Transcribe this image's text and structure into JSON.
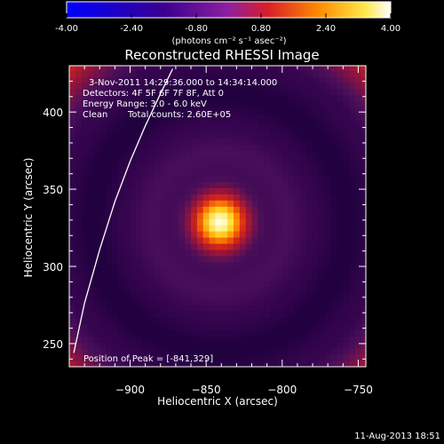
{
  "colorbar": {
    "tick_labels": [
      "-4.00",
      "-2.40",
      "-0.80",
      "0.80",
      "2.40",
      "4.00"
    ],
    "tick_values": [
      -4.0,
      -2.4,
      -0.8,
      0.8,
      2.4,
      4.0
    ],
    "range": [
      -4.0,
      4.0
    ],
    "units": "(photons cm⁻² s⁻¹ asec⁻²)",
    "colormap": "fire (blue-purple-red-orange-yellow-white)"
  },
  "chart_data": {
    "type": "heatmap",
    "title": "Reconstructed RHESSI Image",
    "xlabel": "Heliocentric X (arcsec)",
    "ylabel": "Heliocentric Y (arcsec)",
    "xlim": [
      -940,
      -745
    ],
    "ylim": [
      235,
      430
    ],
    "x_ticks": [
      -900,
      -850,
      -800,
      -750
    ],
    "x_tick_labels": [
      "−900",
      "−850",
      "−800",
      "−750"
    ],
    "y_ticks": [
      250,
      300,
      350,
      400
    ],
    "y_tick_labels": [
      "250",
      "300",
      "350",
      "400"
    ],
    "peak": {
      "x": -841,
      "y": 329
    },
    "source_fwhm_arcsec": 32,
    "ring_radius_arcsec": 84,
    "grid": false,
    "limb_curve": {
      "x": [
        -937,
        -930,
        -920,
        -910,
        -900,
        -890,
        -880,
        -872
      ],
      "y": [
        244,
        276,
        311,
        342,
        368,
        391,
        412,
        428
      ]
    }
  },
  "info": {
    "time_range": "3-Nov-2011 14:29:36.000 to 14:34:14.000",
    "detectors": "Detectors: 4F 5F 6F 7F 8F, Att 0",
    "energy": "Energy Range: 3.0 - 6.0 keV",
    "method": "Clean",
    "counts": "Total counts: 2.60E+05",
    "peak_label": "Position of Peak = [-841,329]"
  },
  "footer": {
    "timestamp": "11-Aug-2013 18:51"
  }
}
